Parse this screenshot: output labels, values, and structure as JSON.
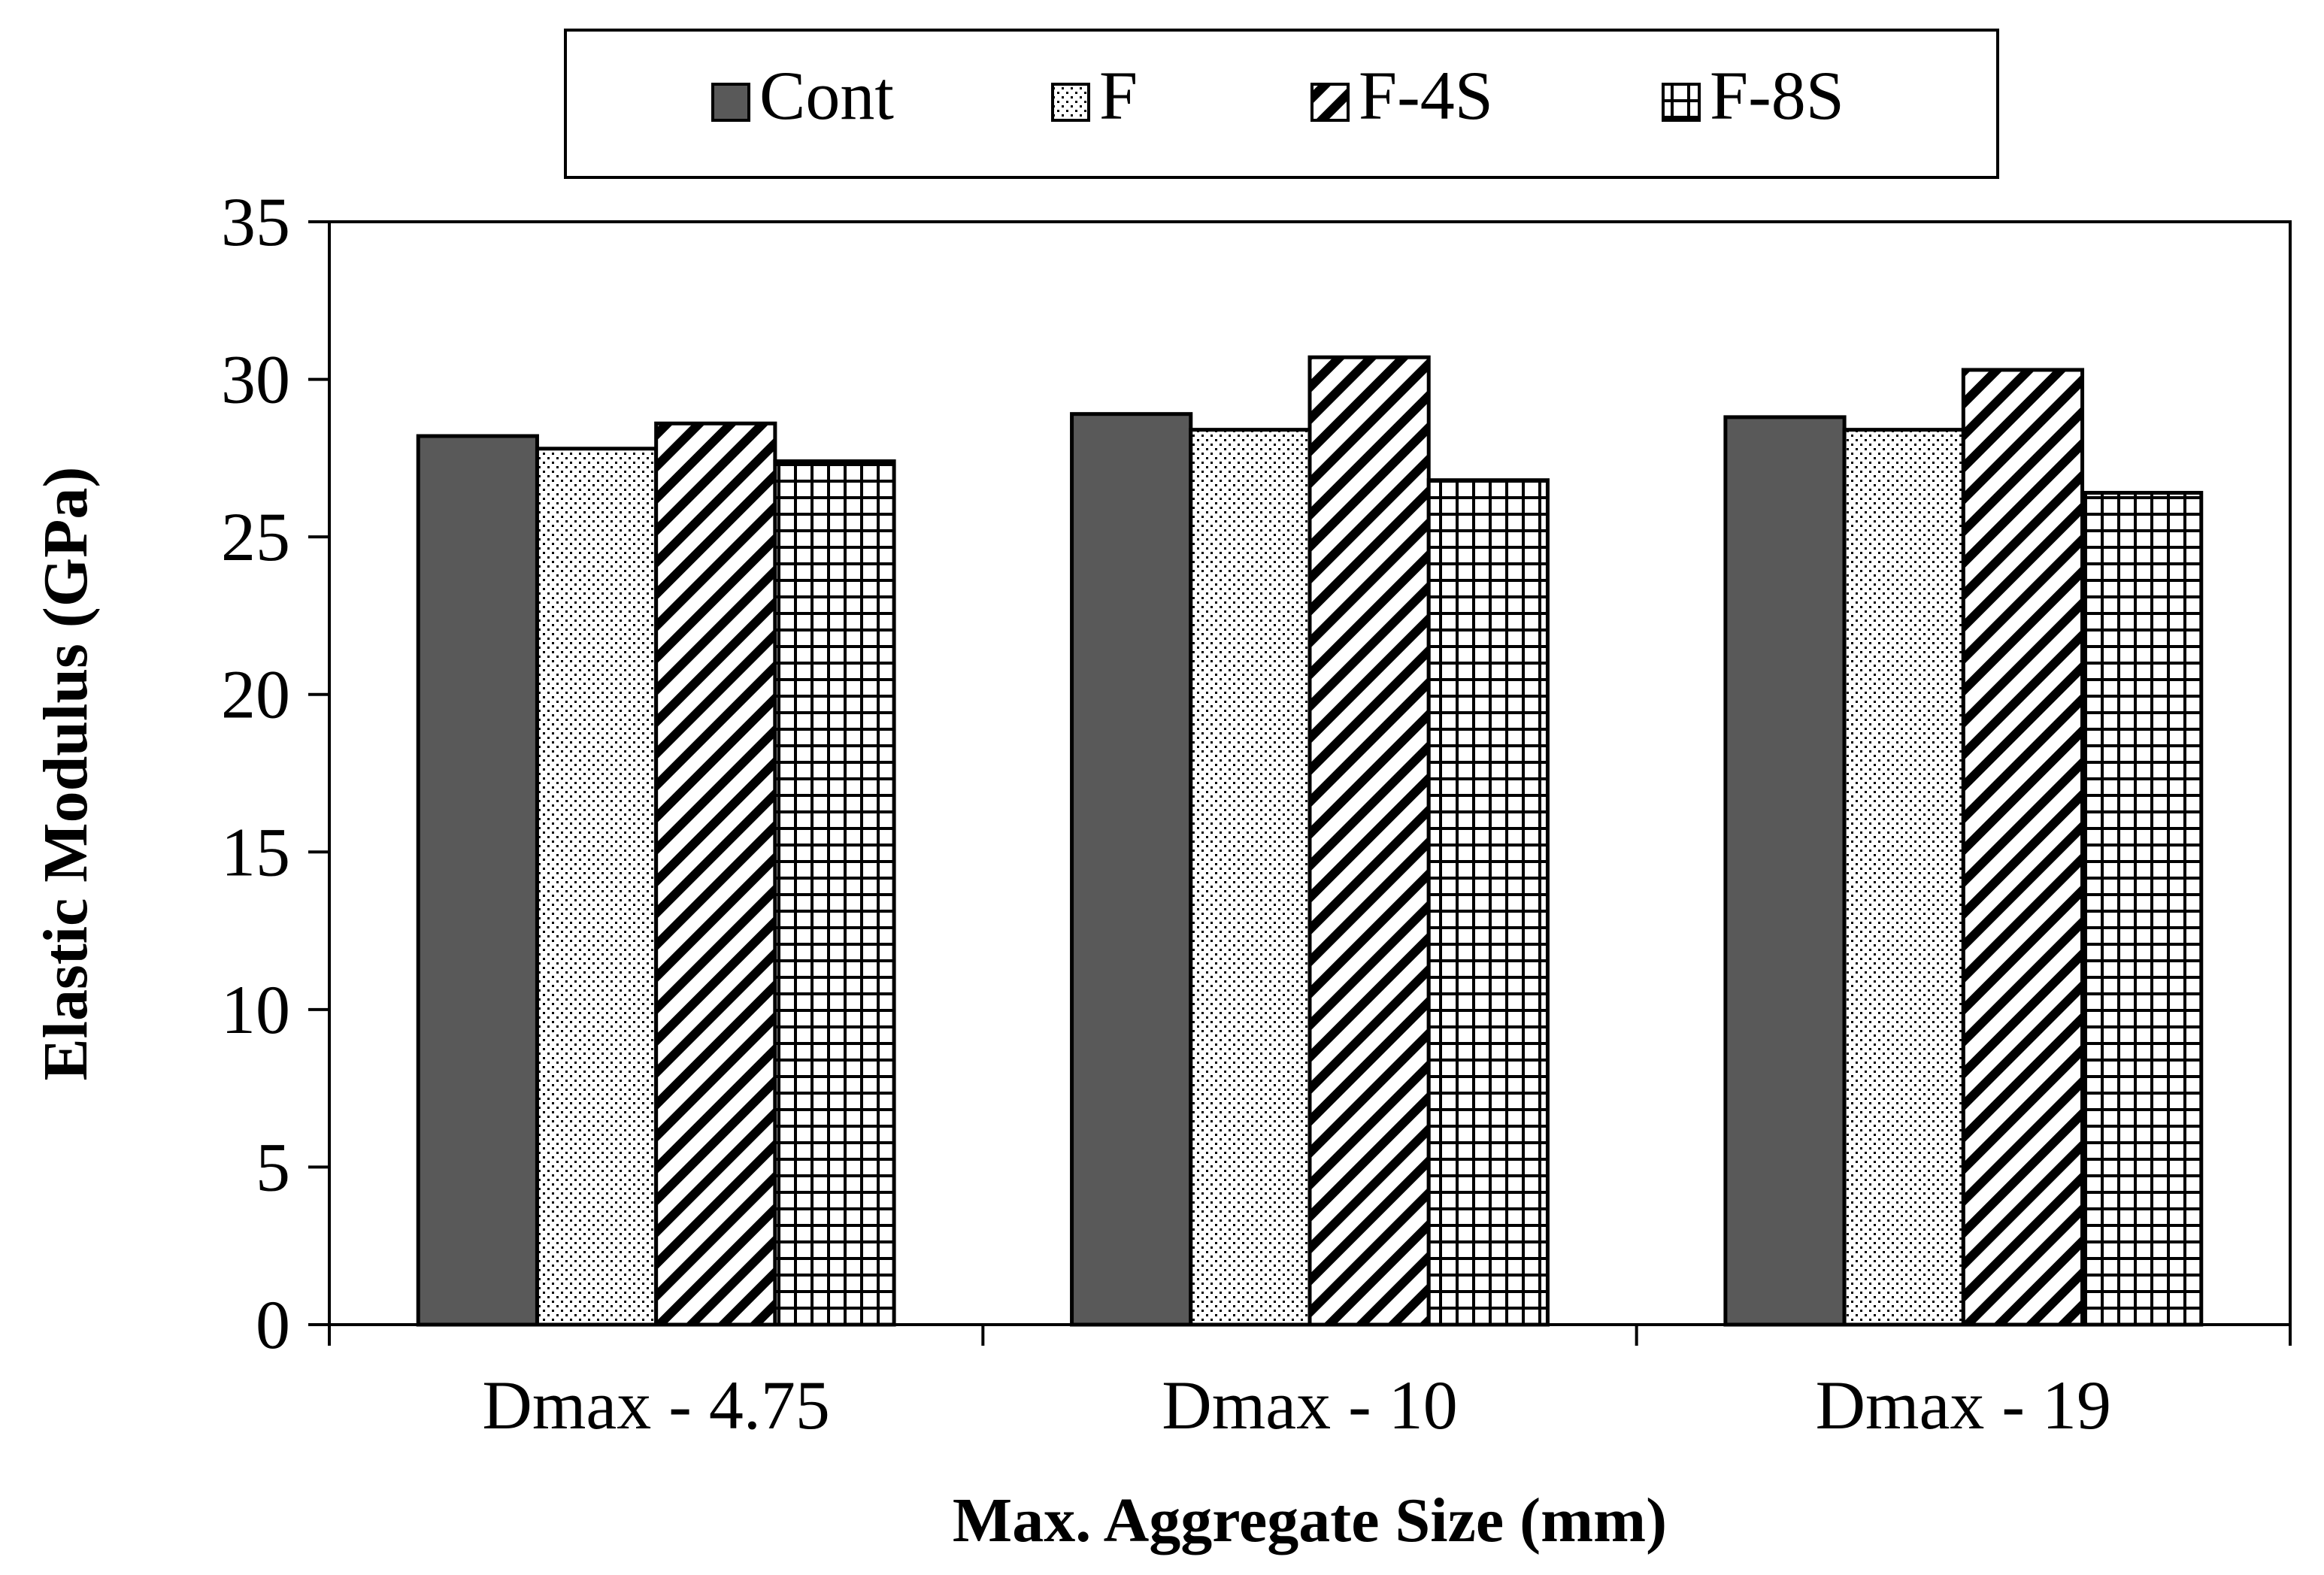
{
  "chart_data": {
    "type": "bar",
    "title": "",
    "xlabel": "Max. Aggregate Size (mm)",
    "ylabel": "Elastic Modulus (GPa)",
    "ylim": [
      0,
      35
    ],
    "yticks": [
      0,
      5,
      10,
      15,
      20,
      25,
      30,
      35
    ],
    "categories": [
      "Dmax - 4.75",
      "Dmax - 10",
      "Dmax - 19"
    ],
    "series": [
      {
        "name": "Cont",
        "values": [
          28.2,
          28.9,
          28.8
        ],
        "pattern": "solid"
      },
      {
        "name": "F",
        "values": [
          27.8,
          28.4,
          28.4
        ],
        "pattern": "dots"
      },
      {
        "name": "F-4S",
        "values": [
          28.6,
          30.7,
          30.3
        ],
        "pattern": "diagonal"
      },
      {
        "name": "F-8S",
        "values": [
          27.4,
          26.8,
          26.4
        ],
        "pattern": "grid"
      }
    ],
    "legend_position": "top",
    "grid": false
  },
  "colors": {
    "solid_fill": "#595959",
    "stroke": "#000000",
    "background": "#ffffff"
  }
}
